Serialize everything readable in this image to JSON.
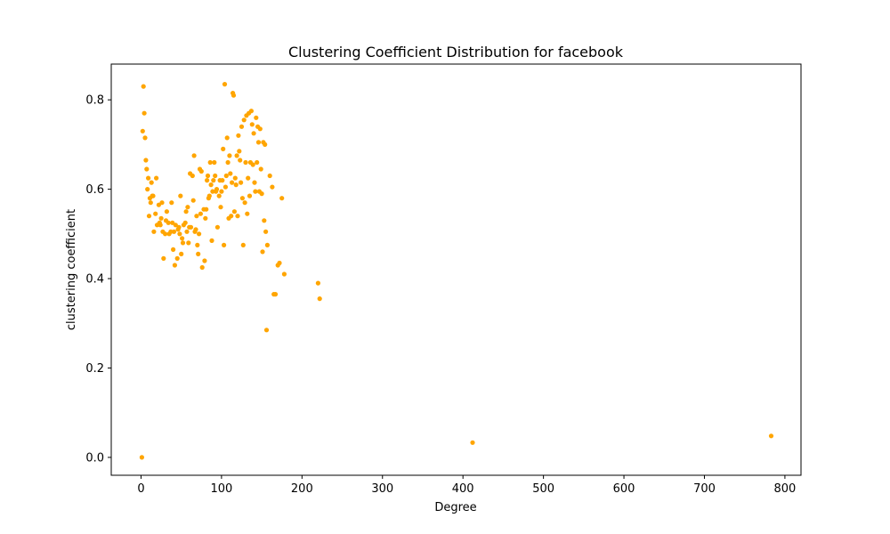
{
  "chart_data": {
    "type": "scatter",
    "title": "Clustering Coefficient Distribution for facebook",
    "xlabel": "Degree",
    "ylabel": "clustering coefficient",
    "xlim": [
      -37,
      820
    ],
    "ylim": [
      -0.04,
      0.88
    ],
    "xticks": [
      0,
      100,
      200,
      300,
      400,
      500,
      600,
      700,
      800
    ],
    "yticks": [
      0.0,
      0.2,
      0.4,
      0.6,
      0.8
    ],
    "ytick_labels": [
      "0.0",
      "0.2",
      "0.4",
      "0.6",
      "0.8"
    ],
    "grid": false,
    "legend": "none",
    "color": "#ffa500",
    "points": [
      [
        1,
        0.0
      ],
      [
        2,
        0.73
      ],
      [
        3,
        0.83
      ],
      [
        4,
        0.77
      ],
      [
        5,
        0.715
      ],
      [
        6,
        0.665
      ],
      [
        7,
        0.645
      ],
      [
        8,
        0.6
      ],
      [
        9,
        0.625
      ],
      [
        10,
        0.54
      ],
      [
        11,
        0.58
      ],
      [
        12,
        0.57
      ],
      [
        13,
        0.615
      ],
      [
        14,
        0.585
      ],
      [
        15,
        0.585
      ],
      [
        16,
        0.505
      ],
      [
        18,
        0.545
      ],
      [
        19,
        0.625
      ],
      [
        20,
        0.52
      ],
      [
        22,
        0.565
      ],
      [
        23,
        0.525
      ],
      [
        24,
        0.52
      ],
      [
        25,
        0.535
      ],
      [
        26,
        0.57
      ],
      [
        27,
        0.505
      ],
      [
        28,
        0.445
      ],
      [
        30,
        0.5
      ],
      [
        31,
        0.53
      ],
      [
        32,
        0.55
      ],
      [
        34,
        0.525
      ],
      [
        35,
        0.5
      ],
      [
        37,
        0.505
      ],
      [
        38,
        0.57
      ],
      [
        39,
        0.525
      ],
      [
        40,
        0.465
      ],
      [
        41,
        0.505
      ],
      [
        42,
        0.43
      ],
      [
        43,
        0.52
      ],
      [
        45,
        0.445
      ],
      [
        46,
        0.51
      ],
      [
        47,
        0.515
      ],
      [
        48,
        0.5
      ],
      [
        49,
        0.585
      ],
      [
        50,
        0.455
      ],
      [
        51,
        0.49
      ],
      [
        52,
        0.48
      ],
      [
        53,
        0.52
      ],
      [
        55,
        0.525
      ],
      [
        56,
        0.55
      ],
      [
        57,
        0.505
      ],
      [
        58,
        0.56
      ],
      [
        59,
        0.48
      ],
      [
        60,
        0.515
      ],
      [
        61,
        0.635
      ],
      [
        62,
        0.515
      ],
      [
        64,
        0.63
      ],
      [
        65,
        0.575
      ],
      [
        66,
        0.675
      ],
      [
        67,
        0.505
      ],
      [
        68,
        0.51
      ],
      [
        69,
        0.54
      ],
      [
        70,
        0.475
      ],
      [
        71,
        0.455
      ],
      [
        72,
        0.5
      ],
      [
        73,
        0.645
      ],
      [
        74,
        0.545
      ],
      [
        75,
        0.64
      ],
      [
        76,
        0.425
      ],
      [
        78,
        0.555
      ],
      [
        79,
        0.44
      ],
      [
        80,
        0.535
      ],
      [
        81,
        0.555
      ],
      [
        82,
        0.62
      ],
      [
        83,
        0.63
      ],
      [
        84,
        0.58
      ],
      [
        85,
        0.585
      ],
      [
        86,
        0.66
      ],
      [
        87,
        0.61
      ],
      [
        88,
        0.485
      ],
      [
        89,
        0.595
      ],
      [
        90,
        0.62
      ],
      [
        91,
        0.66
      ],
      [
        92,
        0.63
      ],
      [
        93,
        0.595
      ],
      [
        94,
        0.6
      ],
      [
        95,
        0.515
      ],
      [
        97,
        0.585
      ],
      [
        98,
        0.62
      ],
      [
        99,
        0.56
      ],
      [
        100,
        0.595
      ],
      [
        101,
        0.62
      ],
      [
        102,
        0.69
      ],
      [
        103,
        0.475
      ],
      [
        104,
        0.835
      ],
      [
        105,
        0.605
      ],
      [
        106,
        0.63
      ],
      [
        107,
        0.715
      ],
      [
        108,
        0.66
      ],
      [
        109,
        0.535
      ],
      [
        110,
        0.675
      ],
      [
        111,
        0.635
      ],
      [
        112,
        0.54
      ],
      [
        113,
        0.615
      ],
      [
        114,
        0.815
      ],
      [
        115,
        0.81
      ],
      [
        116,
        0.55
      ],
      [
        117,
        0.625
      ],
      [
        118,
        0.61
      ],
      [
        119,
        0.675
      ],
      [
        120,
        0.54
      ],
      [
        121,
        0.72
      ],
      [
        122,
        0.685
      ],
      [
        123,
        0.665
      ],
      [
        124,
        0.615
      ],
      [
        125,
        0.74
      ],
      [
        126,
        0.58
      ],
      [
        127,
        0.475
      ],
      [
        128,
        0.755
      ],
      [
        129,
        0.57
      ],
      [
        130,
        0.66
      ],
      [
        131,
        0.765
      ],
      [
        132,
        0.545
      ],
      [
        133,
        0.625
      ],
      [
        134,
        0.77
      ],
      [
        135,
        0.585
      ],
      [
        136,
        0.66
      ],
      [
        137,
        0.775
      ],
      [
        138,
        0.745
      ],
      [
        139,
        0.655
      ],
      [
        140,
        0.725
      ],
      [
        141,
        0.615
      ],
      [
        142,
        0.595
      ],
      [
        143,
        0.76
      ],
      [
        144,
        0.66
      ],
      [
        145,
        0.74
      ],
      [
        146,
        0.705
      ],
      [
        147,
        0.595
      ],
      [
        148,
        0.735
      ],
      [
        149,
        0.645
      ],
      [
        150,
        0.59
      ],
      [
        151,
        0.46
      ],
      [
        152,
        0.705
      ],
      [
        153,
        0.53
      ],
      [
        154,
        0.7
      ],
      [
        155,
        0.505
      ],
      [
        156,
        0.285
      ],
      [
        157,
        0.475
      ],
      [
        160,
        0.63
      ],
      [
        163,
        0.605
      ],
      [
        165,
        0.365
      ],
      [
        167,
        0.365
      ],
      [
        170,
        0.43
      ],
      [
        172,
        0.435
      ],
      [
        175,
        0.58
      ],
      [
        178,
        0.41
      ],
      [
        220,
        0.39
      ],
      [
        222,
        0.355
      ],
      [
        412,
        0.033
      ],
      [
        783,
        0.048
      ]
    ]
  }
}
